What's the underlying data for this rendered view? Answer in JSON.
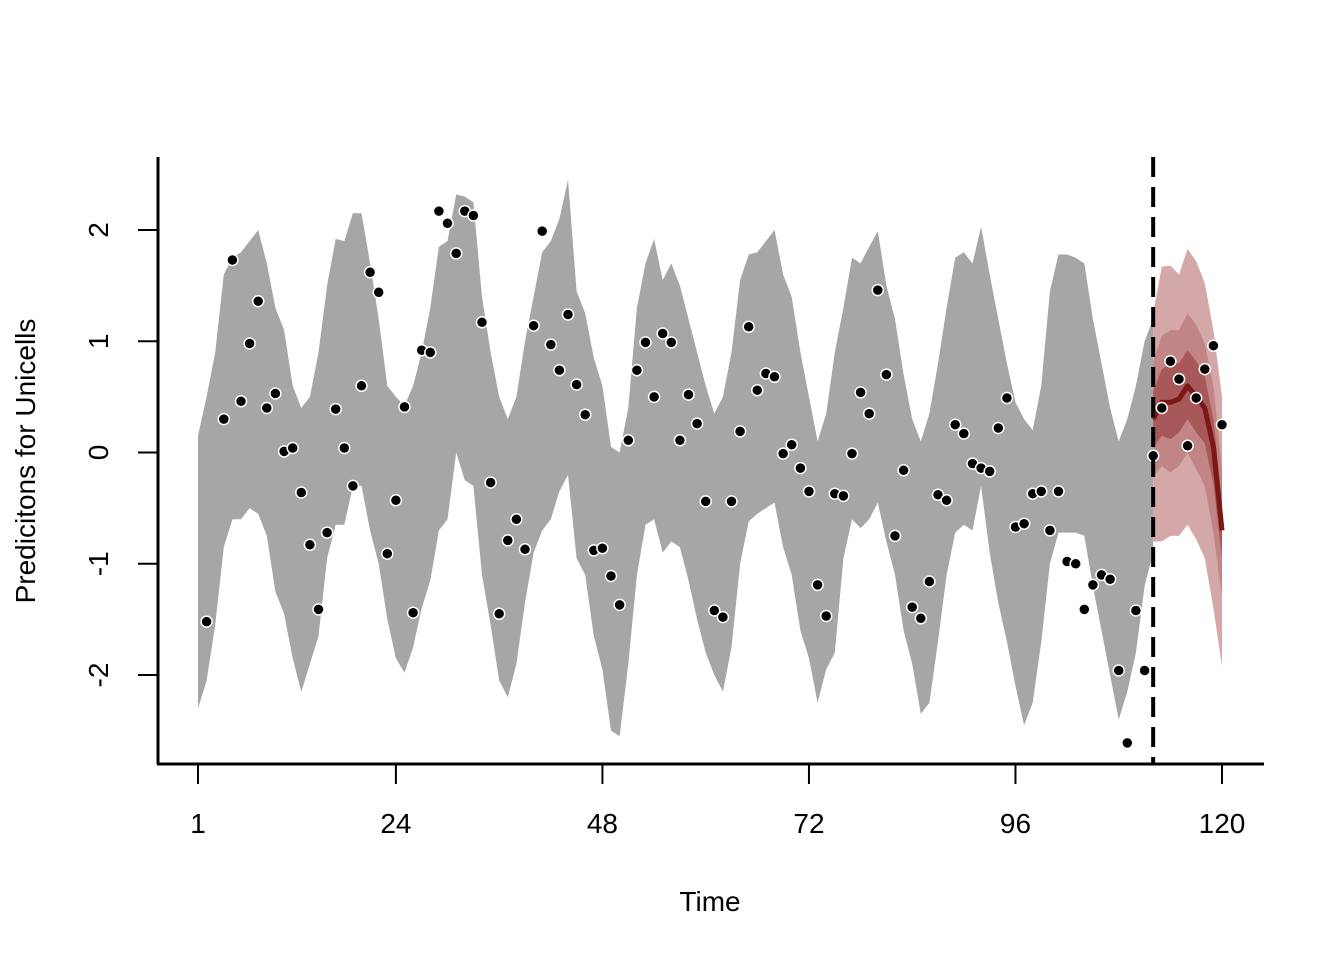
{
  "chart_data": {
    "type": "line",
    "xlabel": "Time",
    "ylabel": "Predicitons for Unicells",
    "xlim": [
      1,
      120
    ],
    "ylim": [
      -2.8,
      2.6
    ],
    "x_ticks": [
      1,
      24,
      48,
      72,
      96,
      120
    ],
    "y_ticks": [
      -2,
      -1,
      0,
      1,
      2
    ],
    "forecast_start": 112,
    "colors": {
      "history_band": "#a6a6a6",
      "forecast_band_outer": "#d4a8a8",
      "forecast_band_mid": "#c28585",
      "forecast_band_inner": "#a85858",
      "forecast_median": "#7a1818",
      "points": "#000000",
      "cutoff_line": "#000000"
    },
    "history_band": {
      "x": [
        1,
        2,
        3,
        4,
        5,
        6,
        7,
        8,
        9,
        10,
        11,
        12,
        13,
        14,
        15,
        16,
        17,
        18,
        19,
        20,
        21,
        22,
        23,
        24,
        25,
        26,
        27,
        28,
        29,
        30,
        31,
        32,
        33,
        34,
        35,
        36,
        37,
        38,
        39,
        40,
        41,
        42,
        43,
        44,
        45,
        46,
        47,
        48,
        49,
        50,
        51,
        52,
        53,
        54,
        55,
        56,
        57,
        58,
        59,
        60,
        61,
        62,
        63,
        64,
        65,
        66,
        67,
        68,
        69,
        70,
        71,
        72,
        73,
        74,
        75,
        76,
        77,
        78,
        79,
        80,
        81,
        82,
        83,
        84,
        85,
        86,
        87,
        88,
        89,
        90,
        91,
        92,
        93,
        94,
        95,
        96,
        97,
        98,
        99,
        100,
        101,
        102,
        103,
        104,
        105,
        106,
        107,
        108,
        109,
        110,
        111,
        112
      ],
      "upper": [
        0.15,
        0.5,
        0.9,
        1.6,
        1.75,
        1.8,
        1.9,
        2.0,
        1.7,
        1.3,
        1.1,
        0.6,
        0.4,
        0.5,
        0.9,
        1.5,
        1.92,
        1.9,
        2.15,
        2.15,
        1.7,
        1.2,
        0.6,
        0.5,
        0.42,
        0.6,
        0.9,
        1.3,
        1.85,
        1.9,
        2.32,
        2.3,
        2.25,
        1.4,
        0.9,
        0.5,
        0.3,
        0.5,
        1.0,
        1.4,
        1.8,
        1.9,
        2.1,
        2.45,
        1.45,
        1.25,
        0.85,
        0.6,
        0.05,
        0.0,
        0.4,
        1.3,
        1.7,
        1.92,
        1.55,
        1.7,
        1.5,
        1.2,
        0.9,
        0.6,
        0.35,
        0.5,
        0.9,
        1.55,
        1.78,
        1.8,
        1.9,
        2.0,
        1.6,
        1.4,
        0.9,
        0.5,
        0.1,
        0.35,
        0.9,
        1.3,
        1.75,
        1.7,
        1.85,
        1.99,
        1.5,
        1.2,
        0.7,
        0.3,
        0.1,
        0.35,
        0.8,
        1.3,
        1.75,
        1.8,
        1.7,
        2.03,
        1.6,
        1.2,
        0.8,
        0.45,
        0.3,
        0.2,
        0.6,
        1.45,
        1.78,
        1.78,
        1.75,
        1.7,
        1.2,
        0.8,
        0.4,
        0.1,
        0.3,
        0.6,
        1.0,
        1.2
      ],
      "lower": [
        -2.3,
        -2.05,
        -1.55,
        -0.85,
        -0.6,
        -0.6,
        -0.5,
        -0.55,
        -0.75,
        -1.25,
        -1.45,
        -1.85,
        -2.15,
        -1.9,
        -1.65,
        -0.95,
        -0.65,
        -0.65,
        -0.3,
        -0.3,
        -0.7,
        -1.0,
        -1.5,
        -1.85,
        -1.98,
        -1.75,
        -1.4,
        -1.15,
        -0.7,
        -0.6,
        0.0,
        -0.25,
        -0.3,
        -1.1,
        -1.55,
        -2.05,
        -2.2,
        -1.9,
        -1.35,
        -0.9,
        -0.7,
        -0.6,
        -0.35,
        -0.2,
        -0.95,
        -1.1,
        -1.65,
        -1.95,
        -2.5,
        -2.55,
        -1.9,
        -1.1,
        -0.65,
        -0.6,
        -0.9,
        -0.8,
        -0.85,
        -1.15,
        -1.5,
        -1.8,
        -2.0,
        -2.15,
        -1.75,
        -1.0,
        -0.62,
        -0.55,
        -0.5,
        -0.45,
        -0.85,
        -1.1,
        -1.6,
        -1.85,
        -2.25,
        -1.95,
        -1.8,
        -0.95,
        -0.6,
        -0.68,
        -0.6,
        -0.45,
        -0.8,
        -1.1,
        -1.6,
        -1.9,
        -2.35,
        -2.25,
        -1.7,
        -1.1,
        -0.72,
        -0.65,
        -0.7,
        -0.3,
        -0.9,
        -1.35,
        -1.7,
        -2.1,
        -2.45,
        -2.25,
        -1.7,
        -1.0,
        -0.72,
        -0.72,
        -0.72,
        -0.75,
        -1.2,
        -1.6,
        -2.0,
        -2.4,
        -2.15,
        -1.8,
        -1.2,
        -0.9
      ]
    },
    "forecast": {
      "x": [
        112,
        113,
        114,
        115,
        116,
        117,
        118,
        119,
        120
      ],
      "median": [
        0.3,
        0.45,
        0.45,
        0.48,
        0.6,
        0.5,
        0.4,
        0.05,
        -0.7
      ],
      "band_outer": {
        "upper": [
          1.25,
          1.67,
          1.68,
          1.6,
          1.83,
          1.72,
          1.52,
          1.1,
          0.5
        ],
        "lower": [
          -0.8,
          -0.8,
          -0.75,
          -0.75,
          -0.65,
          -0.78,
          -0.95,
          -1.4,
          -1.92
        ]
      },
      "band_mid": {
        "upper": [
          0.82,
          1.05,
          1.1,
          1.1,
          1.25,
          1.15,
          0.98,
          0.6,
          -0.15
        ],
        "lower": [
          -0.22,
          -0.12,
          -0.18,
          -0.12,
          0.0,
          -0.15,
          -0.3,
          -0.72,
          -1.3
        ]
      },
      "band_inner": {
        "upper": [
          0.55,
          0.75,
          0.8,
          0.8,
          0.92,
          0.82,
          0.68,
          0.3,
          -0.45
        ],
        "lower": [
          0.05,
          0.15,
          0.12,
          0.18,
          0.3,
          0.18,
          0.08,
          -0.28,
          -0.95
        ]
      }
    },
    "points": {
      "x": [
        2,
        4,
        5,
        6,
        7,
        8,
        9,
        10,
        11,
        12,
        13,
        14,
        15,
        16,
        17,
        18,
        19,
        20,
        21,
        22,
        23,
        24,
        25,
        26,
        27,
        28,
        29,
        30,
        31,
        32,
        33,
        34,
        35,
        36,
        37,
        38,
        39,
        40,
        41,
        42,
        43,
        44,
        45,
        46,
        47,
        48,
        49,
        50,
        51,
        52,
        53,
        54,
        55,
        56,
        57,
        58,
        59,
        60,
        61,
        62,
        63,
        64,
        65,
        66,
        67,
        68,
        69,
        70,
        71,
        72,
        73,
        74,
        75,
        76,
        77,
        78,
        79,
        80,
        81,
        82,
        83,
        84,
        85,
        86,
        87,
        88,
        89,
        90,
        91,
        92,
        93,
        94,
        95,
        96,
        97,
        98,
        99,
        100,
        101,
        102,
        103,
        104,
        105,
        106,
        107,
        108,
        109,
        110,
        111,
        112,
        113,
        114,
        115,
        116,
        117,
        118,
        119,
        120
      ],
      "y": [
        -1.52,
        0.3,
        1.73,
        0.46,
        0.98,
        1.36,
        0.4,
        0.53,
        0.01,
        0.04,
        -0.36,
        -0.83,
        -1.41,
        -0.72,
        0.39,
        0.04,
        -0.3,
        0.6,
        1.62,
        1.44,
        -0.91,
        -0.43,
        0.41,
        -1.44,
        0.92,
        0.9,
        2.17,
        2.06,
        1.79,
        2.17,
        2.13,
        1.17,
        -0.27,
        -1.45,
        -0.79,
        -0.6,
        -0.87,
        1.14,
        1.99,
        0.97,
        0.74,
        1.24,
        0.61,
        0.34,
        -0.88,
        -0.86,
        -1.11,
        -1.37,
        0.11,
        0.74,
        0.99,
        0.5,
        1.07,
        0.99,
        0.11,
        0.52,
        0.26,
        -0.44,
        -1.42,
        -1.48,
        -0.44,
        0.19,
        1.13,
        0.56,
        0.71,
        0.68,
        -0.01,
        0.07,
        -0.14,
        -0.35,
        -1.19,
        -1.47,
        -0.37,
        -0.39,
        -0.01,
        0.54,
        0.35,
        1.46,
        0.7,
        -0.75,
        -0.16,
        -1.39,
        -1.49,
        -1.16,
        -0.38,
        -0.43,
        0.25,
        0.17,
        -0.1,
        -0.14,
        -0.17,
        0.22,
        0.49,
        -0.67,
        -0.64,
        -0.37,
        -0.35,
        -0.7,
        -0.35,
        -0.98,
        -1.0,
        -1.41,
        -1.19,
        -1.1,
        -1.14,
        -1.96,
        -2.61,
        -1.42,
        -1.96,
        -0.03,
        0.4,
        0.82,
        0.66,
        0.06,
        0.49,
        0.75,
        0.96,
        0.25
      ]
    }
  }
}
